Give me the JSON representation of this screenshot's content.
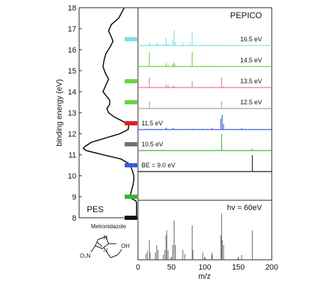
{
  "chart_data": [
    {
      "panel": "PES",
      "type": "line",
      "label": "PES",
      "ylabel": "binding energy (eV)",
      "ylim": [
        8,
        18
      ],
      "yticks": [
        8,
        9,
        10,
        11,
        12,
        13,
        14,
        15,
        16,
        17,
        18
      ],
      "series": [
        {
          "points": [
            [
              18.0,
              0.78
            ],
            [
              17.8,
              0.74
            ],
            [
              17.5,
              0.68
            ],
            [
              17.2,
              0.55
            ],
            [
              16.9,
              0.5
            ],
            [
              16.6,
              0.55
            ],
            [
              16.4,
              0.58
            ],
            [
              16.1,
              0.52
            ],
            [
              15.8,
              0.45
            ],
            [
              15.5,
              0.42
            ],
            [
              15.2,
              0.4
            ],
            [
              14.9,
              0.44
            ],
            [
              14.6,
              0.5
            ],
            [
              14.3,
              0.45
            ],
            [
              14.0,
              0.4
            ],
            [
              13.8,
              0.46
            ],
            [
              13.6,
              0.52
            ],
            [
              13.4,
              0.52
            ],
            [
              13.2,
              0.47
            ],
            [
              13.0,
              0.5
            ],
            [
              12.8,
              0.6
            ],
            [
              12.6,
              0.75
            ],
            [
              12.4,
              0.86
            ],
            [
              12.2,
              0.85
            ],
            [
              12.0,
              0.7
            ],
            [
              11.8,
              0.45
            ],
            [
              11.6,
              0.2
            ],
            [
              11.4,
              0.08
            ],
            [
              11.3,
              0.05
            ],
            [
              11.2,
              0.1
            ],
            [
              11.0,
              0.4
            ],
            [
              10.8,
              0.72
            ],
            [
              10.6,
              0.85
            ],
            [
              10.4,
              0.9
            ],
            [
              10.2,
              0.93
            ],
            [
              10.0,
              0.95
            ],
            [
              9.8,
              0.95
            ],
            [
              9.6,
              0.94
            ],
            [
              9.4,
              0.92
            ],
            [
              9.2,
              0.9
            ],
            [
              9.0,
              0.88
            ],
            [
              8.9,
              0.92
            ],
            [
              8.8,
              0.99
            ],
            [
              8.7,
              1.0
            ],
            [
              8.4,
              1.0
            ],
            [
              8.0,
              1.0
            ]
          ]
        }
      ],
      "markers": [
        {
          "energy": 16.5,
          "color": "#7fe0e0"
        },
        {
          "energy": 14.5,
          "color": "#6cd43c"
        },
        {
          "energy": 13.5,
          "color": "#6cd43c"
        },
        {
          "energy": 12.5,
          "color": "#e02020"
        },
        {
          "energy": 11.5,
          "color": "#707070"
        },
        {
          "energy": 10.5,
          "color": "#3a5ad8"
        },
        {
          "energy": 9.0,
          "color": "#30b830"
        },
        {
          "energy": 8.0,
          "color": "#111111"
        }
      ]
    },
    {
      "panel": "PEPICO",
      "type": "line",
      "title": "PEPICO",
      "xlabel": "m/z",
      "xlim": [
        0,
        200
      ],
      "xticks": [
        0,
        50,
        100,
        150,
        200
      ],
      "series": [
        {
          "name": "16.5 eV",
          "color": "#7fe0e0",
          "peaks": [
            [
              17,
              0.15
            ],
            [
              18,
              0.1
            ],
            [
              28,
              0.12
            ],
            [
              30,
              0.1
            ],
            [
              38,
              0.1
            ],
            [
              42,
              0.42
            ],
            [
              45,
              0.12
            ],
            [
              52,
              0.3
            ],
            [
              54,
              0.85
            ],
            [
              56,
              0.2
            ],
            [
              67,
              0.18
            ],
            [
              78,
              0.2
            ],
            [
              81,
              0.7
            ],
            [
              97,
              0.05
            ],
            [
              110,
              0.05
            ],
            [
              125,
              0.05
            ],
            [
              128,
              0.05
            ]
          ]
        },
        {
          "name": "14.5 eV",
          "color": "#6cd43c",
          "peaks": [
            [
              17,
              0.8
            ],
            [
              28,
              0.05
            ],
            [
              42,
              0.18
            ],
            [
              45,
              0.1
            ],
            [
              52,
              0.15
            ],
            [
              54,
              0.22
            ],
            [
              56,
              0.1
            ],
            [
              81,
              0.8
            ],
            [
              97,
              0.05
            ],
            [
              110,
              0.05
            ],
            [
              125,
              0.03
            ]
          ]
        },
        {
          "name": "13.5 eV",
          "color": "#e8788a",
          "peaks": [
            [
              17,
              0.55
            ],
            [
              42,
              0.18
            ],
            [
              45,
              0.15
            ],
            [
              52,
              0.08
            ],
            [
              54,
              0.1
            ],
            [
              81,
              0.35
            ],
            [
              111,
              0.05
            ],
            [
              125,
              0.55
            ],
            [
              128,
              0.05
            ]
          ]
        },
        {
          "name": "12.5 eV",
          "color": "#a0a0a0",
          "peaks": [
            [
              17,
              0.4
            ],
            [
              125,
              0.4
            ]
          ]
        },
        {
          "name": "11.5 eV",
          "color": "#3a5ad8",
          "peaks": [
            [
              17,
              0.04
            ],
            [
              42,
              0.1
            ],
            [
              43,
              0.05
            ],
            [
              52,
              0.08
            ],
            [
              54,
              0.05
            ],
            [
              81,
              0.05
            ],
            [
              97,
              0.05
            ],
            [
              111,
              0.1
            ],
            [
              124,
              0.6
            ],
            [
              126,
              0.8
            ],
            [
              128,
              0.3
            ],
            [
              155,
              0.08
            ]
          ]
        },
        {
          "name": "10.5 eV",
          "color": "#30b830",
          "peaks": [
            [
              125,
              0.9
            ],
            [
              171,
              0.1
            ]
          ]
        },
        {
          "name": "BE = 9.0 eV",
          "color": "#111111",
          "peaks": [
            [
              171,
              0.9
            ]
          ]
        },
        {
          "name": "hv = 60eV",
          "color": "#707070",
          "peaks": [
            [
              12,
              0.12
            ],
            [
              14,
              0.18
            ],
            [
              17,
              0.4
            ],
            [
              18,
              0.15
            ],
            [
              26,
              0.15
            ],
            [
              28,
              0.3
            ],
            [
              30,
              0.2
            ],
            [
              38,
              0.1
            ],
            [
              40,
              0.2
            ],
            [
              42,
              0.5
            ],
            [
              43,
              0.6
            ],
            [
              45,
              0.2
            ],
            [
              52,
              0.3
            ],
            [
              54,
              0.8
            ],
            [
              56,
              0.3
            ],
            [
              67,
              0.2
            ],
            [
              70,
              0.12
            ],
            [
              81,
              0.7
            ],
            [
              82,
              0.2
            ],
            [
              97,
              0.15
            ],
            [
              110,
              0.1
            ],
            [
              111,
              0.15
            ],
            [
              124,
              0.5
            ],
            [
              125,
              0.95
            ],
            [
              126,
              0.4
            ],
            [
              128,
              0.3
            ],
            [
              155,
              0.1
            ],
            [
              171,
              0.6
            ]
          ]
        }
      ]
    }
  ],
  "molecule": {
    "name": "Metronidazole",
    "groups": [
      "N",
      "N",
      "O₂N",
      "OH"
    ]
  }
}
